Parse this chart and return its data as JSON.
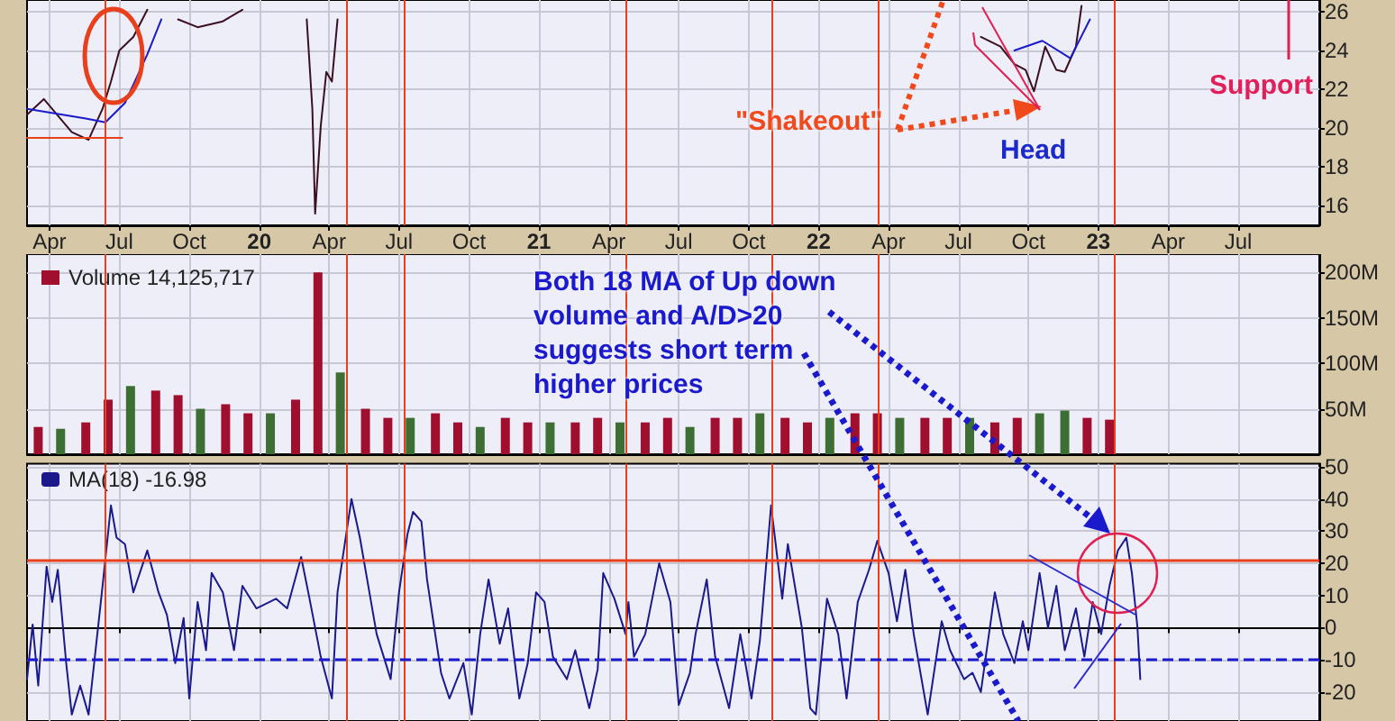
{
  "chart_data": [
    {
      "type": "line",
      "xlim": [
        2019.17,
        2023.79
      ],
      "ylim": [
        15,
        26.6
      ],
      "yticks": [
        16,
        18,
        20,
        22,
        24,
        26
      ],
      "xticks": [
        {
          "value": 2019.25,
          "label": "Apr"
        },
        {
          "value": 2019.5,
          "label": "Jul"
        },
        {
          "value": 2019.75,
          "label": "Oct"
        },
        {
          "value": 2020,
          "label": "20"
        },
        {
          "value": 2020.25,
          "label": "Apr"
        },
        {
          "value": 2020.5,
          "label": "Jul"
        },
        {
          "value": 2020.75,
          "label": "Oct"
        },
        {
          "value": 2021,
          "label": "21"
        },
        {
          "value": 2021.25,
          "label": "Apr"
        },
        {
          "value": 2021.5,
          "label": "Jul"
        },
        {
          "value": 2021.75,
          "label": "Oct"
        },
        {
          "value": 2022,
          "label": "22"
        },
        {
          "value": 2022.25,
          "label": "Apr"
        },
        {
          "value": 2022.5,
          "label": "Jul"
        },
        {
          "value": 2022.75,
          "label": "Oct"
        },
        {
          "value": 2023,
          "label": "23"
        },
        {
          "value": 2023.25,
          "label": "Apr"
        },
        {
          "value": 2023.5,
          "label": "Jul"
        }
      ],
      "grid": true,
      "marker": "none",
      "line_style": "solid",
      "series": [
        {
          "color": "#3a1020",
          "x": [
            2019.17,
            2019.23,
            2019.33,
            2019.39,
            2019.44,
            2019.47,
            2019.5,
            2019.55,
            2019.6,
            2019.65,
            2019.71,
            2019.78,
            2019.87,
            2019.94,
            2020.0,
            2020.17,
            2020.19,
            2020.2,
            2020.22,
            2020.24,
            2020.26,
            2020.28,
            2020.33,
            2022.48,
            2022.58,
            2022.65,
            2022.7,
            2022.74,
            2022.77,
            2022.81,
            2022.85,
            2022.88,
            2022.92,
            2022.94
          ],
          "values": [
            20.7,
            21.5,
            19.8,
            19.4,
            21,
            22.4,
            24,
            24.7,
            26.1,
            null,
            25.6,
            25.2,
            25.5,
            26.1,
            null,
            25.6,
            21,
            15.6,
            20.1,
            22.9,
            22.4,
            25.6,
            null,
            null,
            24.7,
            24.2,
            23.3,
            23,
            21.9,
            24.2,
            23,
            22.9,
            24.2,
            26.3
          ]
        },
        {
          "color": "#1a1acc",
          "x": [
            2019.17,
            2019.38,
            2019.45,
            2019.52,
            2019.6,
            2019.65,
            2019.7,
            2022.7,
            2022.8,
            2022.9,
            2022.97
          ],
          "values": [
            21,
            20.5,
            20.3,
            21.3,
            23.8,
            25.6,
            null,
            24,
            24.5,
            23.6,
            25.6
          ]
        },
        {
          "color": "#e8401c",
          "x": [
            2019.17,
            2019.51
          ],
          "values": [
            19.5,
            19.5
          ]
        }
      ],
      "ref_lines": [
        {
          "axis": "x",
          "value": 2019.45,
          "color": "#e8401c"
        },
        {
          "axis": "x",
          "value": 2020.31,
          "color": "#e8401c"
        },
        {
          "axis": "x",
          "value": 2020.52,
          "color": "#e8401c"
        },
        {
          "axis": "x",
          "value": 2021.31,
          "color": "#e8401c"
        },
        {
          "axis": "x",
          "value": 2021.83,
          "color": "#e8401c"
        },
        {
          "axis": "x",
          "value": 2022.21,
          "color": "#e8401c"
        },
        {
          "axis": "x",
          "value": 2023.06,
          "color": "#e8401c"
        }
      ],
      "annotations": [
        "\"Shakeout\"",
        "Head",
        "Support"
      ]
    },
    {
      "type": "bar",
      "xlim": [
        2019.17,
        2023.79
      ],
      "ylim": [
        0,
        220
      ],
      "yticks": [
        {
          "value": 50,
          "label": "50M"
        },
        {
          "value": 100,
          "label": "100M"
        },
        {
          "value": 150,
          "label": "150M"
        },
        {
          "value": 200,
          "label": "200M"
        }
      ],
      "xticks": [
        {
          "value": 2019.25,
          "label": null
        },
        {
          "value": 2019.5,
          "label": null
        },
        {
          "value": 2019.75,
          "label": null
        },
        {
          "value": 2020,
          "label": null
        },
        {
          "value": 2020.25,
          "label": null
        },
        {
          "value": 2020.5,
          "label": null
        },
        {
          "value": 2020.75,
          "label": null
        },
        {
          "value": 2021,
          "label": null
        },
        {
          "value": 2021.25,
          "label": null
        },
        {
          "value": 2021.5,
          "label": null
        },
        {
          "value": 2021.75,
          "label": null
        },
        {
          "value": 2022,
          "label": null
        },
        {
          "value": 2022.25,
          "label": null
        },
        {
          "value": 2022.5,
          "label": null
        },
        {
          "value": 2022.75,
          "label": null
        },
        {
          "value": 2023,
          "label": null
        },
        {
          "value": 2023.25,
          "label": null
        },
        {
          "value": 2023.5,
          "label": null
        }
      ],
      "tick_labels": "y",
      "grid": true,
      "legend": "top left",
      "series": [
        {
          "name": "Volume 14,125,717",
          "color": "#a0102e",
          "x": [
            2019.21,
            2019.29,
            2019.38,
            2019.46,
            2019.54,
            2019.63,
            2019.71,
            2019.79,
            2019.88,
            2019.96,
            2020.04,
            2020.13,
            2020.21,
            2020.29,
            2020.38,
            2020.46,
            2020.54,
            2020.63,
            2020.71,
            2020.79,
            2020.88,
            2020.96,
            2021.04,
            2021.13,
            2021.21,
            2021.29,
            2021.38,
            2021.46,
            2021.54,
            2021.63,
            2021.71,
            2021.79,
            2021.88,
            2021.96,
            2022.04,
            2022.13,
            2022.21,
            2022.29,
            2022.38,
            2022.46,
            2022.54,
            2022.63,
            2022.71,
            2022.79,
            2022.88,
            2022.96,
            2023.04
          ],
          "values": [
            30,
            28,
            35,
            60,
            75,
            70,
            65,
            50,
            55,
            45,
            45,
            60,
            200,
            90,
            50,
            40,
            40,
            45,
            35,
            30,
            40,
            35,
            35,
            35,
            40,
            35,
            35,
            40,
            30,
            40,
            40,
            45,
            40,
            35,
            40,
            45,
            45,
            40,
            40,
            40,
            40,
            35,
            40,
            45,
            48,
            40,
            38
          ],
          "colors": [
            "#a0102e",
            "#3d6e33",
            "#a0102e",
            "#a0102e",
            "#3d6e33",
            "#a0102e",
            "#a0102e",
            "#3d6e33",
            "#a0102e",
            "#a0102e",
            "#3d6e33",
            "#a0102e",
            "#a0102e",
            "#3d6e33",
            "#a0102e",
            "#a0102e",
            "#3d6e33",
            "#a0102e",
            "#a0102e",
            "#3d6e33",
            "#a0102e",
            "#a0102e",
            "#3d6e33",
            "#a0102e",
            "#a0102e",
            "#3d6e33",
            "#a0102e",
            "#a0102e",
            "#3d6e33",
            "#a0102e",
            "#a0102e",
            "#3d6e33",
            "#a0102e",
            "#a0102e",
            "#3d6e33",
            "#a0102e",
            "#a0102e",
            "#3d6e33",
            "#a0102e",
            "#a0102e",
            "#3d6e33",
            "#a0102e",
            "#a0102e",
            "#3d6e33",
            "#3d6e33",
            "#a0102e",
            "#a0102e"
          ]
        }
      ],
      "ref_lines": [
        {
          "axis": "x",
          "value": 2019.45,
          "color": "#e8401c"
        },
        {
          "axis": "x",
          "value": 2020.31,
          "color": "#e8401c"
        },
        {
          "axis": "x",
          "value": 2020.52,
          "color": "#e8401c"
        },
        {
          "axis": "x",
          "value": 2021.31,
          "color": "#e8401c"
        },
        {
          "axis": "x",
          "value": 2021.83,
          "color": "#e8401c"
        },
        {
          "axis": "x",
          "value": 2022.21,
          "color": "#e8401c"
        },
        {
          "axis": "x",
          "value": 2023.06,
          "color": "#e8401c"
        }
      ],
      "annotations": [
        "Both 18 MA of Up down volume and A/D>20 suggests short term higher prices"
      ]
    },
    {
      "type": "line",
      "xlim": [
        2019.17,
        2023.79
      ],
      "ylim": [
        -29,
        51
      ],
      "yticks": [
        -20,
        -10,
        0,
        10,
        20,
        30,
        40,
        50
      ],
      "xticks": [
        {
          "value": 2019.25,
          "label": null
        },
        {
          "value": 2019.5,
          "label": null
        },
        {
          "value": 2019.75,
          "label": null
        },
        {
          "value": 2020,
          "label": null
        },
        {
          "value": 2020.25,
          "label": null
        },
        {
          "value": 2020.5,
          "label": null
        },
        {
          "value": 2020.75,
          "label": null
        },
        {
          "value": 2021,
          "label": null
        },
        {
          "value": 2021.25,
          "label": null
        },
        {
          "value": 2021.5,
          "label": null
        },
        {
          "value": 2021.75,
          "label": null
        },
        {
          "value": 2022,
          "label": null
        },
        {
          "value": 2022.25,
          "label": null
        },
        {
          "value": 2022.5,
          "label": null
        },
        {
          "value": 2022.75,
          "label": null
        },
        {
          "value": 2023,
          "label": null
        },
        {
          "value": 2023.25,
          "label": null
        },
        {
          "value": 2023.5,
          "label": null
        }
      ],
      "tick_labels": "y",
      "grid": true,
      "legend": "top left",
      "marker": "none",
      "line_style": "solid",
      "series": [
        {
          "name": "MA(18) -16.98",
          "color": "#1a1a8c",
          "x": [
            2019.17,
            2019.19,
            2019.21,
            2019.24,
            2019.26,
            2019.28,
            2019.31,
            2019.33,
            2019.36,
            2019.39,
            2019.44,
            2019.47,
            2019.49,
            2019.52,
            2019.55,
            2019.6,
            2019.64,
            2019.67,
            2019.7,
            2019.73,
            2019.75,
            2019.78,
            2019.81,
            2019.83,
            2019.87,
            2019.91,
            2019.94,
            2019.99,
            2020.06,
            2020.1,
            2020.15,
            2020.18,
            2020.22,
            2020.26,
            2020.28,
            2020.33,
            2020.36,
            2020.39,
            2020.42,
            2020.47,
            2020.5,
            2020.53,
            2020.55,
            2020.58,
            2020.6,
            2020.65,
            2020.68,
            2020.73,
            2020.76,
            2020.79,
            2020.82,
            2020.86,
            2020.89,
            2020.93,
            2020.96,
            2020.99,
            2021.02,
            2021.05,
            2021.1,
            2021.13,
            2021.18,
            2021.21,
            2021.23,
            2021.27,
            2021.31,
            2021.32,
            2021.34,
            2021.38,
            2021.43,
            2021.47,
            2021.5,
            2021.54,
            2021.56,
            2021.6,
            2021.63,
            2021.68,
            2021.72,
            2021.76,
            2021.79,
            2021.83,
            2021.87,
            2021.89,
            2021.94,
            2021.97,
            2021.99,
            2022.03,
            2022.07,
            2022.1,
            2022.14,
            2022.18,
            2022.21,
            2022.25,
            2022.28,
            2022.31,
            2022.34,
            2022.39,
            2022.44,
            2022.47,
            2022.52,
            2022.55,
            2022.58,
            2022.63,
            2022.66,
            2022.7,
            2022.73,
            2022.75,
            2022.79,
            2022.82,
            2022.85,
            2022.88,
            2022.92,
            2022.95,
            2022.98,
            2023.01,
            2023.04,
            2023.07,
            2023.1,
            2023.12,
            2023.14,
            2023.15
          ],
          "values": [
            -16,
            1,
            -18,
            19,
            8,
            18,
            -11,
            -27,
            -18,
            -27,
            13,
            38,
            28,
            26,
            11,
            24,
            11,
            4,
            -11,
            3,
            -22,
            8,
            -7,
            17,
            11,
            -7,
            13,
            6,
            9,
            6,
            22,
            9,
            -9,
            -22,
            11,
            40,
            28,
            13,
            -2,
            -16,
            11,
            29,
            36,
            33,
            15,
            -14,
            -22,
            -11,
            -27,
            -2,
            15,
            -5,
            6,
            -22,
            -11,
            11,
            8,
            -9,
            -16,
            -7,
            -25,
            -13,
            17,
            9,
            -2,
            8,
            -9,
            -2,
            20,
            8,
            -24,
            -14,
            -2,
            15,
            -9,
            -25,
            -2,
            -22,
            -4,
            38,
            9,
            26,
            0,
            -25,
            -27,
            9,
            -2,
            -22,
            8,
            18,
            27,
            17,
            2,
            18,
            -2,
            -27,
            2,
            -7,
            -16,
            -14,
            -20,
            11,
            -2,
            -11,
            2,
            -7,
            17,
            0,
            13,
            -7,
            6,
            -9,
            8,
            -2,
            13,
            24,
            28,
            17,
            0,
            -16
          ]
        }
      ],
      "ref_lines": [
        {
          "axis": "x",
          "value": 2019.45,
          "color": "#e8401c"
        },
        {
          "axis": "x",
          "value": 2020.31,
          "color": "#e8401c"
        },
        {
          "axis": "x",
          "value": 2020.52,
          "color": "#e8401c"
        },
        {
          "axis": "x",
          "value": 2021.31,
          "color": "#e8401c"
        },
        {
          "axis": "x",
          "value": 2021.83,
          "color": "#e8401c"
        },
        {
          "axis": "x",
          "value": 2022.21,
          "color": "#e8401c"
        },
        {
          "axis": "x",
          "value": 2023.06,
          "color": "#e8401c"
        },
        {
          "axis": "y",
          "value": 21,
          "color": "#e8401c"
        },
        {
          "axis": "y",
          "value": -10,
          "color": "#1a1acc",
          "line_style": "dashed"
        }
      ]
    }
  ]
}
